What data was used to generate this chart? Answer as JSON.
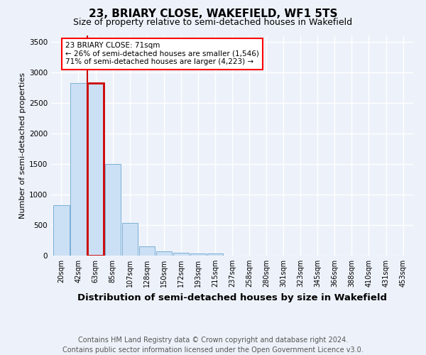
{
  "title1": "23, BRIARY CLOSE, WAKEFIELD, WF1 5TS",
  "title2": "Size of property relative to semi-detached houses in Wakefield",
  "xlabel": "Distribution of semi-detached houses by size in Wakefield",
  "ylabel": "Number of semi-detached properties",
  "footnote": "Contains HM Land Registry data © Crown copyright and database right 2024.\nContains public sector information licensed under the Open Government Licence v3.0.",
  "bar_labels": [
    "20sqm",
    "42sqm",
    "63sqm",
    "85sqm",
    "107sqm",
    "128sqm",
    "150sqm",
    "172sqm",
    "193sqm",
    "215sqm",
    "237sqm",
    "258sqm",
    "280sqm",
    "301sqm",
    "323sqm",
    "345sqm",
    "366sqm",
    "388sqm",
    "410sqm",
    "431sqm",
    "453sqm"
  ],
  "bar_values": [
    820,
    2820,
    2820,
    1500,
    530,
    155,
    65,
    50,
    30,
    30,
    0,
    0,
    0,
    0,
    0,
    0,
    0,
    0,
    0,
    0,
    0
  ],
  "bar_color": "#cce0f5",
  "bar_edge_color": "#7aafd4",
  "highlight_bar_index": 2,
  "highlight_color": "#cc0000",
  "property_label": "23 BRIARY CLOSE: 71sqm",
  "pct_smaller": 26,
  "pct_larger": 71,
  "count_smaller": 1546,
  "count_larger": 4223,
  "ylim": [
    0,
    3600
  ],
  "yticks": [
    0,
    500,
    1000,
    1500,
    2000,
    2500,
    3000,
    3500
  ],
  "bg_color": "#edf2fa",
  "plot_bg_color": "#edf2fa",
  "grid_color": "#ffffff",
  "title1_fontsize": 11,
  "title2_fontsize": 9,
  "xlabel_fontsize": 9.5,
  "ylabel_fontsize": 8,
  "footnote_fontsize": 7
}
